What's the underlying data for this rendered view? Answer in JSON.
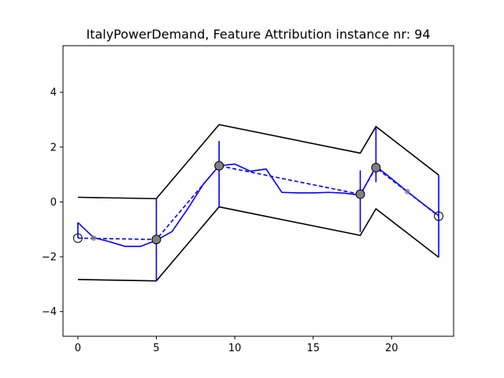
{
  "chart_data": {
    "type": "line",
    "title": "ItalyPowerDemand, Feature Attribution instance nr: 94",
    "xlabel": "",
    "ylabel": "",
    "xlim": [
      -0.95,
      23.95
    ],
    "ylim": [
      -4.9,
      5.7
    ],
    "xticks": [
      0,
      5,
      10,
      15,
      20
    ],
    "yticks": [
      -4,
      -2,
      0,
      2,
      4
    ],
    "grid": false,
    "colors": {
      "series": "#0000ff",
      "envelope": "#000000",
      "marker_fill": "#808080"
    },
    "series": [
      {
        "style": "solid",
        "x": [
          0,
          1,
          2,
          3,
          4,
          5,
          6,
          7,
          8,
          9,
          10,
          11,
          12,
          13,
          14,
          15,
          16,
          17,
          18,
          19,
          20,
          21,
          22,
          23
        ],
        "y": [
          -0.75,
          -1.3,
          -1.45,
          -1.62,
          -1.62,
          -1.4,
          -1.08,
          -0.25,
          0.65,
          1.32,
          1.38,
          1.12,
          1.2,
          0.35,
          0.33,
          0.33,
          0.35,
          0.32,
          0.25,
          1.3,
          0.85,
          0.38,
          -0.07,
          -0.5
        ]
      },
      {
        "style": "dashed",
        "x": [
          0,
          5,
          9,
          18,
          19,
          23
        ],
        "y": [
          -1.32,
          -1.37,
          1.32,
          0.28,
          1.25,
          -0.52
        ]
      }
    ],
    "envelope_upper": {
      "x": [
        0,
        5,
        9,
        18,
        19,
        23
      ],
      "y": [
        0.17,
        0.12,
        2.82,
        1.78,
        2.75,
        0.98
      ]
    },
    "envelope_lower": {
      "x": [
        0,
        5,
        9,
        18,
        19,
        23
      ],
      "y": [
        -2.83,
        -2.88,
        -0.18,
        -1.22,
        -0.25,
        -2.02
      ]
    },
    "attribution_bars": [
      {
        "x": 0,
        "y0": -1.32,
        "y1": -0.75
      },
      {
        "x": 5,
        "y0": -2.88,
        "y1": 0.12
      },
      {
        "x": 9,
        "y0": -0.18,
        "y1": 2.22
      },
      {
        "x": 18,
        "y0": -1.1,
        "y1": 1.15
      },
      {
        "x": 19,
        "y0": 0.72,
        "y1": 2.75
      },
      {
        "x": 23,
        "y0": -2.02,
        "y1": 0.98
      }
    ],
    "markers": [
      {
        "x": 0,
        "y": -1.32,
        "fill": "none"
      },
      {
        "x": 5,
        "y": -1.37,
        "fill": "gray"
      },
      {
        "x": 9,
        "y": 1.32,
        "fill": "gray"
      },
      {
        "x": 18,
        "y": 0.28,
        "fill": "gray"
      },
      {
        "x": 19,
        "y": 1.25,
        "fill": "gray"
      },
      {
        "x": 23,
        "y": -0.52,
        "fill": "none"
      }
    ],
    "small_markers": [
      {
        "x": 1,
        "y": -1.32
      },
      {
        "x": 21,
        "y": 0.38
      }
    ]
  }
}
